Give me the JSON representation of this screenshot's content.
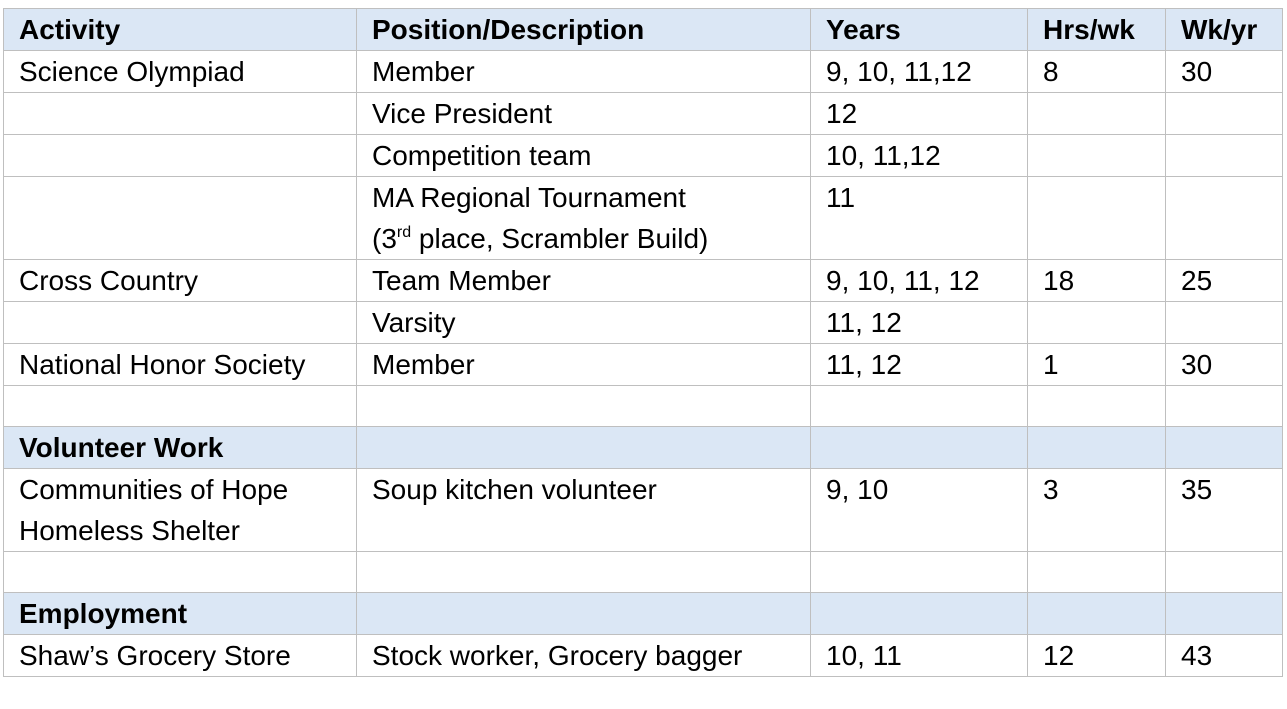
{
  "headers": [
    "Activity",
    "Position/Description",
    "Years",
    "Hrs/wk",
    "Wk/yr"
  ],
  "rows": [
    {
      "activity": "Science Olympiad",
      "position": "Member",
      "years": "9, 10, 11,12",
      "hrs": "8",
      "wks": "30"
    },
    {
      "activity": "",
      "position": "Vice President",
      "years": "12",
      "hrs": "",
      "wks": ""
    },
    {
      "activity": "",
      "position": "Competition team",
      "years": "10, 11,12",
      "hrs": "",
      "wks": ""
    },
    {
      "activity": "",
      "position_line1": "MA Regional Tournament",
      "position_line2_pre": "(3",
      "position_line2_sup": "rd",
      "position_line2_post": " place, Scrambler Build)",
      "years": "11",
      "hrs": "",
      "wks": ""
    },
    {
      "activity": "Cross Country",
      "position": "Team Member",
      "years": "9, 10, 11, 12",
      "hrs": "18",
      "wks": "25"
    },
    {
      "activity": "",
      "position": "Varsity",
      "years": "11, 12",
      "hrs": "",
      "wks": ""
    },
    {
      "activity": "National Honor Society",
      "position": "Member",
      "years": "11, 12",
      "hrs": "1",
      "wks": "30"
    }
  ],
  "sections": {
    "volunteer": {
      "title": "Volunteer Work",
      "row": {
        "activity_line1": "Communities of Hope",
        "activity_line2": "Homeless Shelter",
        "position": "Soup kitchen volunteer",
        "years": "9, 10",
        "hrs": "3",
        "wks": "35"
      }
    },
    "employment": {
      "title": "Employment",
      "row": {
        "activity": "Shaw’s Grocery Store",
        "position": "Stock worker, Grocery bagger",
        "years": "10, 11",
        "hrs": "12",
        "wks": "43"
      }
    }
  }
}
